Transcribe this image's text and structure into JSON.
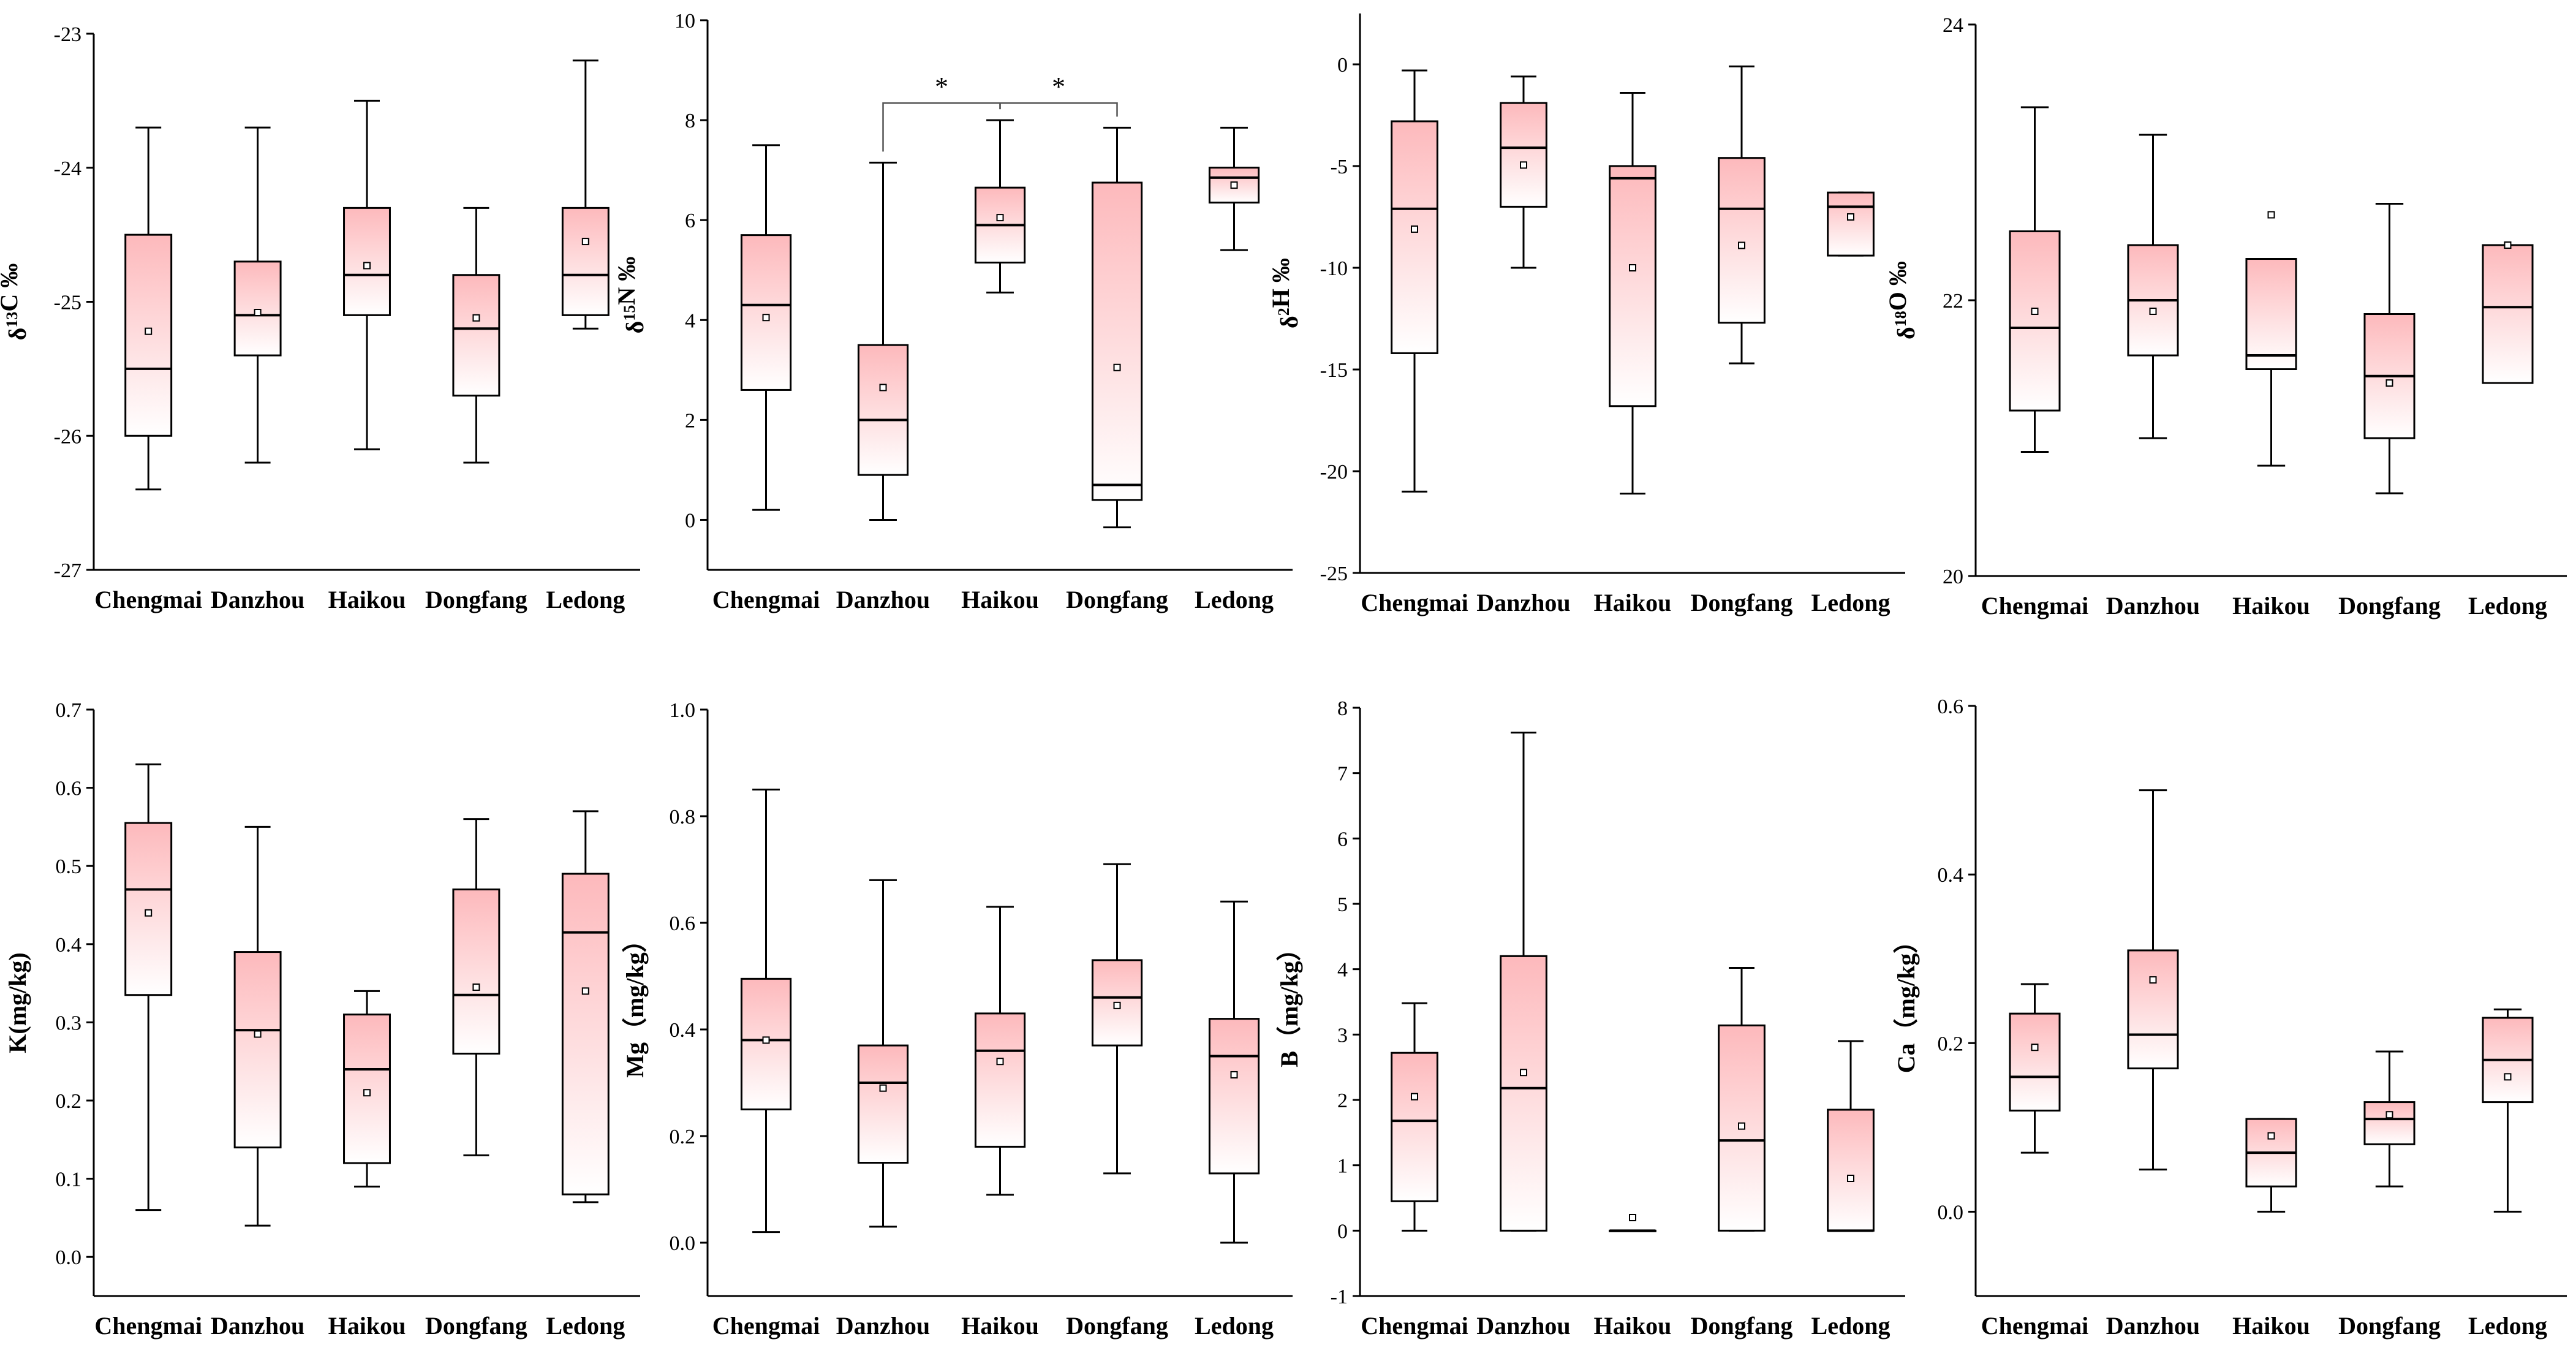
{
  "figure": {
    "box_gradient_top": "#fdb9bc",
    "box_gradient_bottom": "#ffffff"
  },
  "chart_data": [
    {
      "type": "box",
      "ylabel": "δ13C ‰",
      "ylabel_parts": [
        {
          "t": "δ"
        },
        {
          "t": "13",
          "sup": true
        },
        {
          "t": "C ‰"
        }
      ],
      "ylim": [
        -27,
        -23
      ],
      "yticks": [
        -27,
        -26,
        -25,
        -24,
        -23
      ],
      "categories": [
        "Chengmai",
        "Danzhou",
        "Haikou",
        "Dongfang",
        "Ledong"
      ],
      "stats": [
        {
          "min": -26.4,
          "q1": -26.0,
          "median": -25.5,
          "q3": -24.5,
          "max": -23.7,
          "mean": -25.22
        },
        {
          "min": -26.2,
          "q1": -25.4,
          "median": -25.1,
          "q3": -24.7,
          "max": -23.7,
          "mean": -25.08
        },
        {
          "min": -26.1,
          "q1": -25.1,
          "median": -24.8,
          "q3": -24.3,
          "max": -23.5,
          "mean": -24.73
        },
        {
          "min": -26.2,
          "q1": -25.7,
          "median": -25.2,
          "q3": -24.8,
          "max": -24.3,
          "mean": -25.12
        },
        {
          "min": -25.2,
          "q1": -25.1,
          "median": -24.8,
          "q3": -24.3,
          "max": -23.2,
          "mean": -24.55
        }
      ]
    },
    {
      "type": "box",
      "ylabel": "δ15N ‰",
      "ylabel_parts": [
        {
          "t": "δ"
        },
        {
          "t": "15",
          "sup": true
        },
        {
          "t": "N ‰"
        }
      ],
      "ylim": [
        -1,
        10
      ],
      "yticks": [
        0,
        2,
        4,
        6,
        8,
        10
      ],
      "categories": [
        "Chengmai",
        "Danzhou",
        "Haikou",
        "Dongfang",
        "Ledong"
      ],
      "stats": [
        {
          "min": 0.2,
          "q1": 2.6,
          "median": 4.3,
          "q3": 5.7,
          "max": 7.5,
          "mean": 4.05
        },
        {
          "min": 0.0,
          "q1": 0.9,
          "median": 2.0,
          "q3": 3.5,
          "max": 7.15,
          "mean": 2.65
        },
        {
          "min": 4.55,
          "q1": 5.15,
          "median": 5.9,
          "q3": 6.65,
          "max": 8.0,
          "mean": 6.05
        },
        {
          "min": -0.15,
          "q1": 0.4,
          "median": 0.7,
          "q3": 6.75,
          "max": 7.85,
          "mean": 3.05
        },
        {
          "min": 5.4,
          "q1": 6.35,
          "median": 6.85,
          "q3": 7.05,
          "max": 7.85,
          "mean": 6.7
        }
      ],
      "significance": [
        {
          "from": 1,
          "to": 2,
          "label": "*"
        },
        {
          "from": 2,
          "to": 3,
          "label": "*"
        }
      ]
    },
    {
      "type": "box",
      "ylabel": "δ2H ‰",
      "ylabel_parts": [
        {
          "t": "δ"
        },
        {
          "t": "2",
          "sup": true
        },
        {
          "t": "H ‰"
        }
      ],
      "ylim": [
        -25,
        2.5
      ],
      "yticks": [
        -25,
        -20,
        -15,
        -10,
        -5,
        0
      ],
      "categories": [
        "Chengmai",
        "Danzhou",
        "Haikou",
        "Dongfang",
        "Ledong"
      ],
      "stats": [
        {
          "min": -21.0,
          "q1": -14.2,
          "median": -7.1,
          "q3": -2.8,
          "max": -0.3,
          "mean": -8.1
        },
        {
          "min": -10.0,
          "q1": -7.0,
          "median": -4.1,
          "q3": -1.9,
          "max": -0.6,
          "mean": -4.95
        },
        {
          "min": -21.1,
          "q1": -16.8,
          "median": -5.6,
          "q3": -5.0,
          "max": -1.4,
          "mean": -10.0
        },
        {
          "min": -14.7,
          "q1": -12.7,
          "median": -7.1,
          "q3": -4.6,
          "max": -0.1,
          "mean": -8.9
        },
        {
          "min": -9.4,
          "q1": -9.4,
          "median": -7.0,
          "q3": -6.3,
          "max": -6.3,
          "mean": -7.5
        }
      ]
    },
    {
      "type": "box",
      "ylabel": "δ18O ‰",
      "ylabel_parts": [
        {
          "t": "δ"
        },
        {
          "t": "18",
          "sup": true
        },
        {
          "t": "O ‰"
        }
      ],
      "ylim": [
        20,
        24
      ],
      "yticks": [
        20,
        22,
        24
      ],
      "categories": [
        "Chengmai",
        "Danzhou",
        "Haikou",
        "Dongfang",
        "Ledong"
      ],
      "stats": [
        {
          "min": 20.9,
          "q1": 21.2,
          "median": 21.8,
          "q3": 22.5,
          "max": 23.4,
          "mean": 21.92
        },
        {
          "min": 21.0,
          "q1": 21.6,
          "median": 22.0,
          "q3": 22.4,
          "max": 23.2,
          "mean": 21.92
        },
        {
          "min": 20.8,
          "q1": 21.5,
          "median": 21.6,
          "q3": 22.3,
          "max": 22.3,
          "mean": 22.62
        },
        {
          "min": 20.6,
          "q1": 21.0,
          "median": 21.45,
          "q3": 21.9,
          "max": 22.7,
          "mean": 21.4
        },
        {
          "min": 21.4,
          "q1": 21.4,
          "median": 21.95,
          "q3": 22.4,
          "max": 22.4,
          "mean": 22.4
        }
      ]
    },
    {
      "type": "box",
      "ylabel": "K(mg/kg)",
      "ylabel_parts": [
        {
          "t": "K(mg/kg)"
        }
      ],
      "ylim": [
        -0.05,
        0.7
      ],
      "yticks": [
        0.0,
        0.1,
        0.2,
        0.3,
        0.4,
        0.5,
        0.6,
        0.7
      ],
      "ytick_labels": [
        "0.0",
        "0.1",
        "0.2",
        "0.3",
        "0.4",
        "0.5",
        "0.6",
        "0.7"
      ],
      "categories": [
        "Chengmai",
        "Danzhou",
        "Haikou",
        "Dongfang",
        "Ledong"
      ],
      "stats": [
        {
          "min": 0.06,
          "q1": 0.335,
          "median": 0.47,
          "q3": 0.555,
          "max": 0.63,
          "mean": 0.44
        },
        {
          "min": 0.04,
          "q1": 0.14,
          "median": 0.29,
          "q3": 0.39,
          "max": 0.55,
          "mean": 0.285
        },
        {
          "min": 0.09,
          "q1": 0.12,
          "median": 0.24,
          "q3": 0.31,
          "max": 0.34,
          "mean": 0.21
        },
        {
          "min": 0.13,
          "q1": 0.26,
          "median": 0.335,
          "q3": 0.47,
          "max": 0.56,
          "mean": 0.345
        },
        {
          "min": 0.07,
          "q1": 0.08,
          "median": 0.415,
          "q3": 0.49,
          "max": 0.57,
          "mean": 0.34
        }
      ]
    },
    {
      "type": "box",
      "ylabel": "Mg（mg/kg）",
      "ylabel_parts": [
        {
          "t": "Mg（mg/kg）"
        }
      ],
      "ylim": [
        -0.1,
        1.0
      ],
      "yticks": [
        0.0,
        0.2,
        0.4,
        0.6,
        0.8,
        1.0
      ],
      "ytick_labels": [
        "0.0",
        "0.2",
        "0.4",
        "0.6",
        "0.8",
        "1.0"
      ],
      "categories": [
        "Chengmai",
        "Danzhou",
        "Haikou",
        "Dongfang",
        "Ledong"
      ],
      "stats": [
        {
          "min": 0.02,
          "q1": 0.25,
          "median": 0.38,
          "q3": 0.495,
          "max": 0.85,
          "mean": 0.38
        },
        {
          "min": 0.03,
          "q1": 0.15,
          "median": 0.3,
          "q3": 0.37,
          "max": 0.68,
          "mean": 0.29
        },
        {
          "min": 0.09,
          "q1": 0.18,
          "median": 0.36,
          "q3": 0.43,
          "max": 0.63,
          "mean": 0.34
        },
        {
          "min": 0.13,
          "q1": 0.37,
          "median": 0.46,
          "q3": 0.53,
          "max": 0.71,
          "mean": 0.445
        },
        {
          "min": 0.0,
          "q1": 0.13,
          "median": 0.35,
          "q3": 0.42,
          "max": 0.64,
          "mean": 0.315
        }
      ]
    },
    {
      "type": "box",
      "ylabel": "B（mg/kg）",
      "ylabel_parts": [
        {
          "t": "B（mg/kg）"
        }
      ],
      "ylim": [
        -1,
        8
      ],
      "yticks": [
        -1,
        0,
        1,
        2,
        3,
        4,
        5,
        6,
        7,
        8
      ],
      "categories": [
        "Chengmai",
        "Danzhou",
        "Haikou",
        "Dongfang",
        "Ledong"
      ],
      "stats": [
        {
          "min": 0.0,
          "q1": 0.45,
          "median": 1.68,
          "q3": 2.72,
          "max": 3.48,
          "mean": 2.05
        },
        {
          "min": 0.0,
          "q1": 0.0,
          "median": 2.18,
          "q3": 4.2,
          "max": 7.62,
          "mean": 2.42
        },
        {
          "min": 0.0,
          "q1": 0.0,
          "median": 0.0,
          "q3": 0.0,
          "max": 0.0,
          "mean": 0.2
        },
        {
          "min": 0.0,
          "q1": 0.0,
          "median": 1.38,
          "q3": 3.14,
          "max": 4.02,
          "mean": 1.6
        },
        {
          "min": 0.0,
          "q1": 0.0,
          "median": 0.0,
          "q3": 1.85,
          "max": 2.9,
          "mean": 0.8
        }
      ]
    },
    {
      "type": "box",
      "ylabel": "Ca（mg/kg）",
      "ylabel_parts": [
        {
          "t": "Ca（mg/kg）"
        }
      ],
      "ylim": [
        -0.1,
        0.6
      ],
      "yticks": [
        0.0,
        0.2,
        0.4,
        0.6
      ],
      "ytick_labels": [
        "0.0",
        "0.2",
        "0.4",
        "0.6"
      ],
      "categories": [
        "Chengmai",
        "Danzhou",
        "Haikou",
        "Dongfang",
        "Ledong"
      ],
      "stats": [
        {
          "min": 0.07,
          "q1": 0.12,
          "median": 0.16,
          "q3": 0.235,
          "max": 0.27,
          "mean": 0.195
        },
        {
          "min": 0.05,
          "q1": 0.17,
          "median": 0.21,
          "q3": 0.31,
          "max": 0.5,
          "mean": 0.275
        },
        {
          "min": 0.0,
          "q1": 0.03,
          "median": 0.07,
          "q3": 0.11,
          "max": 0.11,
          "mean": 0.09
        },
        {
          "min": 0.03,
          "q1": 0.08,
          "median": 0.11,
          "q3": 0.13,
          "max": 0.19,
          "mean": 0.115
        },
        {
          "min": 0.0,
          "q1": 0.13,
          "median": 0.18,
          "q3": 0.23,
          "max": 0.24,
          "mean": 0.16
        }
      ]
    }
  ]
}
